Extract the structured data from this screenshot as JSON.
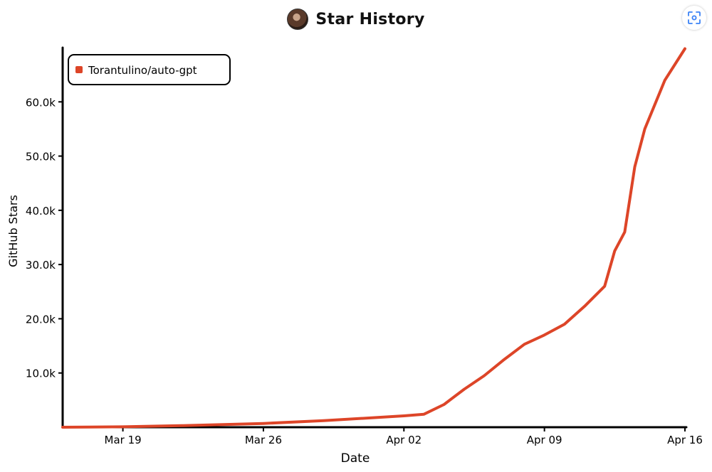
{
  "header": {
    "title": "Star History",
    "avatar_icon": "user-avatar-icon",
    "screenshot_icon": "focus-frame-icon"
  },
  "colors": {
    "series": "#dd4528",
    "axis": "#000000",
    "icon_accent": "#3b82f6"
  },
  "chart_data": {
    "type": "line",
    "title": "Star History",
    "xlabel": "Date",
    "ylabel": "GitHub Stars",
    "x_range": [
      "2023-03-16",
      "2023-04-16"
    ],
    "ylim": [
      0,
      70000
    ],
    "y_ticks": [
      {
        "value": 10000,
        "label": "10.0k"
      },
      {
        "value": 20000,
        "label": "20.0k"
      },
      {
        "value": 30000,
        "label": "30.0k"
      },
      {
        "value": 40000,
        "label": "40.0k"
      },
      {
        "value": 50000,
        "label": "50.0k"
      },
      {
        "value": 60000,
        "label": "60.0k"
      }
    ],
    "x_ticks": [
      {
        "date": "2023-03-19",
        "label": "Mar 19"
      },
      {
        "date": "2023-03-26",
        "label": "Mar 26"
      },
      {
        "date": "2023-04-02",
        "label": "Apr 02"
      },
      {
        "date": "2023-04-09",
        "label": "Apr 09"
      },
      {
        "date": "2023-04-16",
        "label": "Apr 16"
      }
    ],
    "grid": false,
    "legend_position": "top-left",
    "series": [
      {
        "name": "Torantulino/auto-gpt",
        "color": "#dd4528",
        "points": [
          {
            "x": "2023-03-16",
            "y": 0
          },
          {
            "x": "2023-03-19",
            "y": 80
          },
          {
            "x": "2023-03-22",
            "y": 300
          },
          {
            "x": "2023-03-26",
            "y": 700
          },
          {
            "x": "2023-03-29",
            "y": 1200
          },
          {
            "x": "2023-04-02",
            "y": 2100
          },
          {
            "x": "2023-04-03",
            "y": 2400
          },
          {
            "x": "2023-04-04",
            "y": 4200
          },
          {
            "x": "2023-04-05",
            "y": 7000
          },
          {
            "x": "2023-04-06",
            "y": 9500
          },
          {
            "x": "2023-04-07",
            "y": 12500
          },
          {
            "x": "2023-04-08",
            "y": 15300
          },
          {
            "x": "2023-04-09",
            "y": 17000
          },
          {
            "x": "2023-04-10",
            "y": 19000
          },
          {
            "x": "2023-04-11",
            "y": 22300
          },
          {
            "x": "2023-04-12",
            "y": 26000
          },
          {
            "x": "2023-04-12T12:00",
            "y": 32500
          },
          {
            "x": "2023-04-13",
            "y": 36000
          },
          {
            "x": "2023-04-13T12:00",
            "y": 48000
          },
          {
            "x": "2023-04-14",
            "y": 55000
          },
          {
            "x": "2023-04-15",
            "y": 64000
          },
          {
            "x": "2023-04-16",
            "y": 69800
          }
        ]
      }
    ]
  }
}
